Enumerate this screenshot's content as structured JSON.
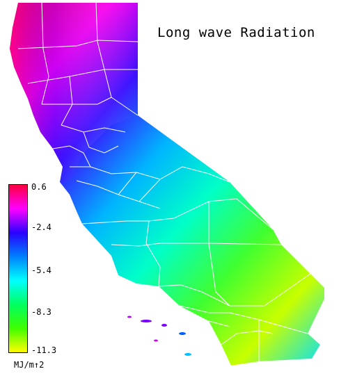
{
  "map": {
    "title": "Long wave Radiation",
    "region": "California",
    "colors": {
      "high": "#ff0055",
      "magenta": "#ff00ff",
      "blue": "#2222ff",
      "cyan": "#00e6ff",
      "green": "#22ff22",
      "yellow": "#ddff00",
      "boundaries": "#ffffff",
      "background": "#ffffff"
    }
  },
  "legend": {
    "ticks": [
      "0.6",
      "-2.4",
      "-5.4",
      "-8.3",
      "-11.3"
    ],
    "unit": "MJ/m↑2",
    "gradient": [
      "#ff0040",
      "#ff00ff",
      "#2a00ff",
      "#0080ff",
      "#00ffff",
      "#00ff60",
      "#40ff00",
      "#ffff00"
    ]
  }
}
